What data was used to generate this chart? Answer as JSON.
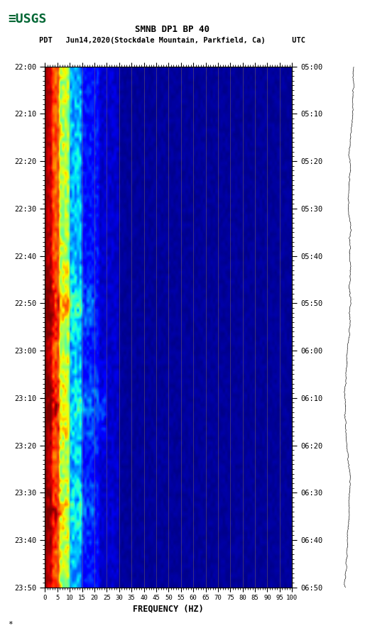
{
  "title_line1": "SMNB DP1 BP 40",
  "title_line2": "PDT   Jun14,2020(Stockdale Mountain, Parkfield, Ca)      UTC",
  "xlabel": "FREQUENCY (HZ)",
  "freq_min": 0,
  "freq_max": 100,
  "left_time_labels": [
    "22:00",
    "22:10",
    "22:20",
    "22:30",
    "22:40",
    "22:50",
    "23:00",
    "23:10",
    "23:20",
    "23:30",
    "23:40",
    "23:50"
  ],
  "right_time_labels": [
    "05:00",
    "05:10",
    "05:20",
    "05:30",
    "05:40",
    "05:50",
    "06:00",
    "06:10",
    "06:20",
    "06:30",
    "06:40",
    "06:50"
  ],
  "freq_ticks": [
    0,
    5,
    10,
    15,
    20,
    25,
    30,
    35,
    40,
    45,
    50,
    55,
    60,
    65,
    70,
    75,
    80,
    85,
    90,
    95,
    100
  ],
  "vertical_line_freqs": [
    5,
    10,
    15,
    20,
    25,
    30,
    35,
    40,
    45,
    50,
    55,
    60,
    65,
    70,
    75,
    80,
    85,
    90,
    95,
    100
  ],
  "colormap": "jet",
  "fig_bg": "#ffffff",
  "logo_color": "#006633",
  "seis_color": "#000000",
  "vline_color": "#8B7355",
  "vline_alpha": 0.6,
  "vline_lw": 0.5
}
